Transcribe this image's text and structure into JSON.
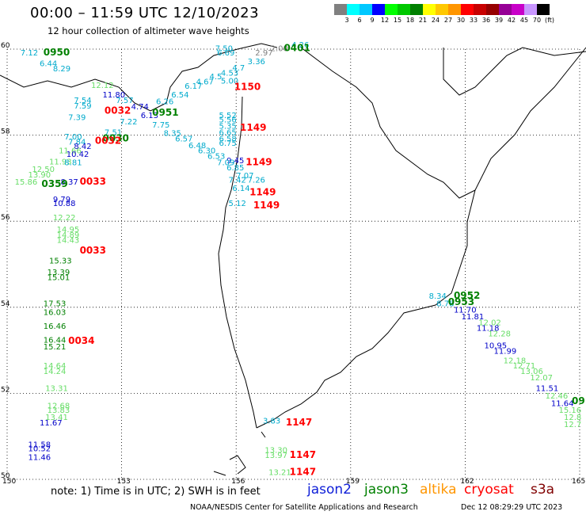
{
  "title": "00:00 – 11:59 UTC 12/10/2023",
  "subtitle": "12 hour collection of altimeter wave heights",
  "colorbar": {
    "unit": "(ft)",
    "labels": [
      "3",
      "6",
      "9",
      "12",
      "15",
      "18",
      "21",
      "24",
      "27",
      "30",
      "33",
      "36",
      "39",
      "42",
      "45",
      "70"
    ],
    "colors": [
      "#808080",
      "#00ffff",
      "#00c8ff",
      "#0000ff",
      "#00ff00",
      "#00c800",
      "#008000",
      "#ffff00",
      "#ffc800",
      "#ff9600",
      "#ff0000",
      "#c80000",
      "#960000",
      "#960096",
      "#c800c8",
      "#c896ff",
      "#000000"
    ]
  },
  "map": {
    "lat_labels": [
      "60",
      "58",
      "56",
      "54",
      "52",
      "50"
    ],
    "lon_labels": [
      "150",
      "153",
      "156",
      "159",
      "162",
      "165"
    ]
  },
  "satellite_colors": {
    "jason2": "#0000c8",
    "jason3": "#008000",
    "altika": "#ff9600",
    "cryosat": "#ff0000",
    "s3a": "#800000",
    "cyan": "#00aacc",
    "gray": "#808080",
    "light": "#66dd66"
  },
  "passes": [
    {
      "time": "0950",
      "color": "jason3",
      "lon": 150.95,
      "lat": 59.85
    },
    {
      "time": "0401",
      "color": "jason3",
      "lon": 157.25,
      "lat": 59.95
    },
    {
      "time": "1150",
      "color": "cryosat",
      "lon": 155.95,
      "lat": 59.05
    },
    {
      "time": "0951",
      "color": "jason3",
      "lon": 153.8,
      "lat": 58.45
    },
    {
      "time": "0032",
      "color": "cryosat",
      "lon": 152.55,
      "lat": 58.5
    },
    {
      "time": "1149",
      "color": "cryosat",
      "lon": 156.1,
      "lat": 58.1
    },
    {
      "time": "0030",
      "color": "jason3",
      "lon": 152.5,
      "lat": 57.85
    },
    {
      "time": "0032",
      "color": "cryosat",
      "lon": 152.3,
      "lat": 57.8
    },
    {
      "time": "1149",
      "color": "cryosat",
      "lon": 156.25,
      "lat": 57.3
    },
    {
      "time": "0033",
      "color": "cryosat",
      "lon": 151.9,
      "lat": 56.85
    },
    {
      "time": "0359",
      "color": "jason3",
      "lon": 150.9,
      "lat": 56.8
    },
    {
      "time": "1149",
      "color": "cryosat",
      "lon": 156.35,
      "lat": 56.6
    },
    {
      "time": "1149",
      "color": "cryosat",
      "lon": 156.45,
      "lat": 56.3
    },
    {
      "time": "0033",
      "color": "cryosat",
      "lon": 151.9,
      "lat": 55.25
    },
    {
      "time": "0952",
      "color": "jason3",
      "lon": 161.7,
      "lat": 54.2
    },
    {
      "time": "0953",
      "color": "jason3",
      "lon": 161.55,
      "lat": 54.05
    },
    {
      "time": "0034",
      "color": "cryosat",
      "lon": 151.6,
      "lat": 53.15
    },
    {
      "time": "1147",
      "color": "cryosat",
      "lon": 157.3,
      "lat": 51.25
    },
    {
      "time": "1147",
      "color": "cryosat",
      "lon": 157.4,
      "lat": 50.5
    },
    {
      "time": "1147",
      "color": "cryosat",
      "lon": 157.4,
      "lat": 50.1
    },
    {
      "time": "09",
      "color": "jason3",
      "lon": 164.8,
      "lat": 51.75
    }
  ],
  "values": [
    {
      "v": "7.50",
      "c": "cyan",
      "lon": 155.45,
      "lat": 59.95
    },
    {
      "v": "7.12",
      "c": "cyan",
      "lon": 150.35,
      "lat": 59.85
    },
    {
      "v": "6.69",
      "c": "cyan",
      "lon": 155.5,
      "lat": 59.85
    },
    {
      "v": "4.26",
      "c": "cyan",
      "lon": 157.45,
      "lat": 60.05
    },
    {
      "v": "2.00",
      "c": "gray",
      "lon": 156.9,
      "lat": 59.95
    },
    {
      "v": "2.97",
      "c": "gray",
      "lon": 156.5,
      "lat": 59.85
    },
    {
      "v": "3.36",
      "c": "cyan",
      "lon": 156.3,
      "lat": 59.65
    },
    {
      "v": "6.44",
      "c": "cyan",
      "lon": 150.85,
      "lat": 59.6
    },
    {
      "v": "4.7",
      "c": "cyan",
      "lon": 155.9,
      "lat": 59.5
    },
    {
      "v": "8.29",
      "c": "cyan",
      "lon": 151.2,
      "lat": 59.48
    },
    {
      "v": "4.53",
      "c": "cyan",
      "lon": 155.6,
      "lat": 59.38
    },
    {
      "v": "4.5",
      "c": "cyan",
      "lon": 155.3,
      "lat": 59.3
    },
    {
      "v": "5.00",
      "c": "cyan",
      "lon": 155.6,
      "lat": 59.2
    },
    {
      "v": "4.67",
      "c": "cyan",
      "lon": 154.95,
      "lat": 59.18
    },
    {
      "v": "6.17",
      "c": "cyan",
      "lon": 154.65,
      "lat": 59.08
    },
    {
      "v": "12.12",
      "c": "light",
      "lon": 152.2,
      "lat": 59.1
    },
    {
      "v": "6.54",
      "c": "cyan",
      "lon": 154.3,
      "lat": 58.88
    },
    {
      "v": "11.80",
      "c": "jason2",
      "lon": 152.5,
      "lat": 58.88
    },
    {
      "v": "7.54",
      "c": "cyan",
      "lon": 151.75,
      "lat": 58.75
    },
    {
      "v": "7.57",
      "c": "cyan",
      "lon": 152.85,
      "lat": 58.75
    },
    {
      "v": "6.26",
      "c": "cyan",
      "lon": 153.9,
      "lat": 58.72
    },
    {
      "v": "7.59",
      "c": "cyan",
      "lon": 151.75,
      "lat": 58.62
    },
    {
      "v": "4.74",
      "c": "jason2",
      "lon": 153.25,
      "lat": 58.6
    },
    {
      "v": "6.13",
      "c": "jason2",
      "lon": 153.5,
      "lat": 58.4
    },
    {
      "v": "7.39",
      "c": "cyan",
      "lon": 151.6,
      "lat": 58.35
    },
    {
      "v": "5.52",
      "c": "cyan",
      "lon": 155.55,
      "lat": 58.4
    },
    {
      "v": "5.56",
      "c": "cyan",
      "lon": 155.55,
      "lat": 58.3
    },
    {
      "v": "7.75",
      "cyan": true,
      "c": "cyan",
      "lon": 153.8,
      "lat": 58.18
    },
    {
      "v": "7.22",
      "c": "cyan",
      "lon": 152.95,
      "lat": 58.25
    },
    {
      "v": "5.35",
      "c": "cyan",
      "lon": 155.55,
      "lat": 58.15
    },
    {
      "v": "7.51",
      "c": "cyan",
      "lon": 152.55,
      "lat": 58.0
    },
    {
      "v": "8.35",
      "c": "cyan",
      "lon": 154.1,
      "lat": 57.98
    },
    {
      "v": "6.65",
      "c": "cyan",
      "lon": 155.55,
      "lat": 58.0
    },
    {
      "v": "6.57",
      "c": "cyan",
      "lon": 154.4,
      "lat": 57.85
    },
    {
      "v": "6.58",
      "c": "cyan",
      "lon": 155.55,
      "lat": 57.85
    },
    {
      "v": "7.00",
      "c": "cyan",
      "lon": 151.5,
      "lat": 57.9
    },
    {
      "v": "7.84",
      "c": "cyan",
      "lon": 151.6,
      "lat": 57.78
    },
    {
      "v": "6.48",
      "c": "cyan",
      "lon": 154.75,
      "lat": 57.7
    },
    {
      "v": "6.75",
      "c": "cyan",
      "lon": 155.55,
      "lat": 57.75
    },
    {
      "v": "8.42",
      "c": "jason2",
      "lon": 151.75,
      "lat": 57.68
    },
    {
      "v": "11.66",
      "c": "light",
      "lon": 151.35,
      "lat": 57.58
    },
    {
      "v": "6.30",
      "c": "cyan",
      "lon": 155.0,
      "lat": 57.58
    },
    {
      "v": "10.42",
      "c": "jason2",
      "lon": 151.55,
      "lat": 57.5
    },
    {
      "v": "6.53",
      "c": "cyan",
      "lon": 155.25,
      "lat": 57.45
    },
    {
      "v": "9.45",
      "c": "jason2",
      "lon": 155.75,
      "lat": 57.35
    },
    {
      "v": "11.93",
      "c": "light",
      "lon": 151.1,
      "lat": 57.32
    },
    {
      "v": "8.81",
      "c": "cyan",
      "lon": 151.5,
      "lat": 57.3
    },
    {
      "v": "7.09",
      "c": "cyan",
      "lon": 155.5,
      "lat": 57.3
    },
    {
      "v": "6.85",
      "c": "cyan",
      "lon": 155.75,
      "lat": 57.18
    },
    {
      "v": "12.50",
      "c": "light",
      "lon": 150.65,
      "lat": 57.15
    },
    {
      "v": "7.07",
      "c": "cyan",
      "lon": 156.0,
      "lat": 57.0
    },
    {
      "v": "13.90",
      "c": "light",
      "lon": 150.55,
      "lat": 57.02
    },
    {
      "v": "7.42",
      "c": "cyan",
      "lon": 155.8,
      "lat": 56.9
    },
    {
      "v": "7.26",
      "c": "cyan",
      "lon": 156.3,
      "lat": 56.9
    },
    {
      "v": "15.86",
      "c": "light",
      "lon": 150.2,
      "lat": 56.85
    },
    {
      "v": "8.37",
      "c": "jason2",
      "lon": 151.4,
      "lat": 56.85
    },
    {
      "v": "6.14",
      "c": "cyan",
      "lon": 155.9,
      "lat": 56.7
    },
    {
      "v": "9.79",
      "c": "jason2",
      "lon": 151.2,
      "lat": 56.45
    },
    {
      "v": "5.12",
      "c": "cyan",
      "lon": 155.8,
      "lat": 56.35
    },
    {
      "v": "10.88",
      "c": "jason2",
      "lon": 151.2,
      "lat": 56.35
    },
    {
      "v": "12.22",
      "c": "light",
      "lon": 151.2,
      "lat": 56.02
    },
    {
      "v": "14.95",
      "c": "light",
      "lon": 151.3,
      "lat": 55.75
    },
    {
      "v": "14.89",
      "c": "light",
      "lon": 151.3,
      "lat": 55.62
    },
    {
      "v": "14.43",
      "c": "light",
      "lon": 151.3,
      "lat": 55.5
    },
    {
      "v": "15.33",
      "c": "jason3",
      "lon": 151.1,
      "lat": 55.02
    },
    {
      "v": "13.39",
      "c": "jason3",
      "lon": 151.05,
      "lat": 54.75
    },
    {
      "v": "15.01",
      "c": "jason3",
      "lon": 151.05,
      "lat": 54.63
    },
    {
      "v": "8.34",
      "c": "cyan",
      "lon": 161.05,
      "lat": 54.2
    },
    {
      "v": "8.78",
      "c": "cyan",
      "lon": 161.25,
      "lat": 54.02
    },
    {
      "v": "17.53",
      "c": "jason3",
      "lon": 150.95,
      "lat": 54.02
    },
    {
      "v": "11.70",
      "c": "jason2",
      "lon": 161.7,
      "lat": 53.88
    },
    {
      "v": "16.03",
      "c": "jason3",
      "lon": 150.95,
      "lat": 53.82
    },
    {
      "v": "11.81",
      "c": "jason2",
      "lon": 161.9,
      "lat": 53.72
    },
    {
      "v": "12.02",
      "c": "light",
      "lon": 162.35,
      "lat": 53.58
    },
    {
      "v": "16.46",
      "c": "jason3",
      "lon": 150.95,
      "lat": 53.5
    },
    {
      "v": "11.18",
      "c": "jason2",
      "lon": 162.3,
      "lat": 53.45
    },
    {
      "v": "12.28",
      "c": "light",
      "lon": 162.6,
      "lat": 53.32
    },
    {
      "v": "16.44",
      "c": "jason3",
      "lon": 150.95,
      "lat": 53.18
    },
    {
      "v": "10.95",
      "c": "jason2",
      "lon": 162.5,
      "lat": 53.05
    },
    {
      "v": "15.21",
      "c": "jason3",
      "lon": 150.95,
      "lat": 53.02
    },
    {
      "v": "11.99",
      "c": "jason2",
      "lon": 162.75,
      "lat": 52.92
    },
    {
      "v": "12.18",
      "c": "light",
      "lon": 163.0,
      "lat": 52.7
    },
    {
      "v": "12.71",
      "c": "light",
      "lon": 163.25,
      "lat": 52.58
    },
    {
      "v": "13.06",
      "c": "light",
      "lon": 163.45,
      "lat": 52.45
    },
    {
      "v": "14.64",
      "c": "light",
      "lon": 150.95,
      "lat": 52.58
    },
    {
      "v": "14.24",
      "c": "light",
      "lon": 150.95,
      "lat": 52.45
    },
    {
      "v": "12.07",
      "c": "light",
      "lon": 163.7,
      "lat": 52.3
    },
    {
      "v": "11.51",
      "c": "jason2",
      "lon": 163.85,
      "lat": 52.05
    },
    {
      "v": "13.31",
      "c": "light",
      "lon": 151.0,
      "lat": 52.05
    },
    {
      "v": "12.46",
      "c": "light",
      "lon": 164.1,
      "lat": 51.88
    },
    {
      "v": "11.64",
      "c": "jason2",
      "lon": 164.25,
      "lat": 51.7
    },
    {
      "v": "15.16",
      "c": "light",
      "lon": 164.45,
      "lat": 51.55
    },
    {
      "v": "12.68",
      "c": "light",
      "lon": 151.05,
      "lat": 51.65
    },
    {
      "v": "13.83",
      "c": "light",
      "lon": 151.05,
      "lat": 51.55
    },
    {
      "v": "12.8",
      "c": "light",
      "lon": 164.6,
      "lat": 51.38
    },
    {
      "v": "13.41",
      "c": "light",
      "lon": 151.0,
      "lat": 51.38
    },
    {
      "v": "11.67",
      "c": "jason2",
      "lon": 150.85,
      "lat": 51.25
    },
    {
      "v": "12.7",
      "c": "light",
      "lon": 164.85,
      "lat": 51.22
    },
    {
      "v": "3.83",
      "c": "cyan",
      "lon": 156.7,
      "lat": 51.3
    },
    {
      "v": "11.58",
      "c": "jason2",
      "lon": 150.55,
      "lat": 50.75
    },
    {
      "v": "10.52",
      "c": "jason2",
      "lon": 150.55,
      "lat": 50.65
    },
    {
      "v": "11.46",
      "c": "jason2",
      "lon": 150.55,
      "lat": 50.45
    },
    {
      "v": "13.30",
      "c": "light",
      "lon": 156.75,
      "lat": 50.62
    },
    {
      "v": "13.97",
      "c": "light",
      "lon": 156.75,
      "lat": 50.5
    },
    {
      "v": "13.21",
      "c": "light",
      "lon": 156.85,
      "lat": 50.1
    }
  ],
  "legend": [
    {
      "label": "jason2",
      "color": "#1020d8"
    },
    {
      "label": "jason3",
      "color": "#008000"
    },
    {
      "label": "altika",
      "color": "#ff9600"
    },
    {
      "label": "cryosat",
      "color": "#ff0000"
    },
    {
      "label": "s3a",
      "color": "#800000"
    }
  ],
  "footer": {
    "note": "note: 1) Time is in UTC; 2) SWH is in feet",
    "credit": "NOAA/NESDIS Center for Satellite Applications and Research",
    "timestamp": "Dec 12 08:29:29 UTC 2023"
  }
}
